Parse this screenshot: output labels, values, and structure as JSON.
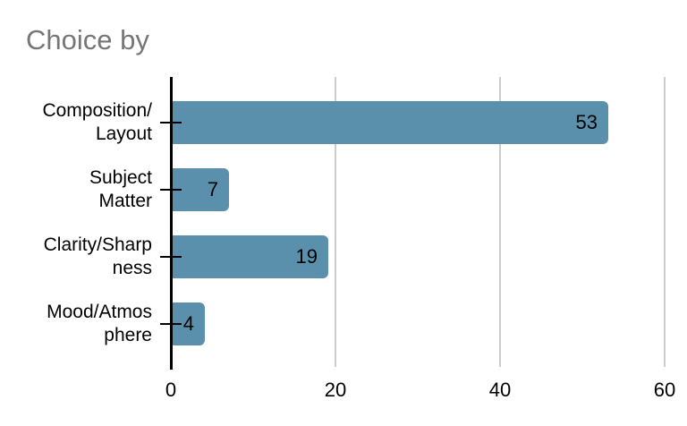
{
  "title": "Choice by",
  "colors": {
    "bar": "#5A90AC",
    "title_text": "#767676",
    "gridline": "#cccccc",
    "axis": "#000000",
    "label_text": "#000000"
  },
  "chart_data": {
    "type": "bar",
    "orientation": "horizontal",
    "title": "Choice by",
    "categories": [
      "Composition/Layout",
      "Subject Matter",
      "Clarity/Sharpness",
      "Mood/Atmosphere"
    ],
    "category_lines": [
      [
        "Composition/",
        "Layout"
      ],
      [
        "Subject",
        "Matter"
      ],
      [
        "Clarity/Sharp",
        "ness"
      ],
      [
        "Mood/Atmos",
        "phere"
      ]
    ],
    "values": [
      53,
      7,
      19,
      4
    ],
    "value_labels": [
      "53",
      "7",
      "19",
      "4"
    ],
    "xlabel": "",
    "ylabel": "",
    "xlim": [
      0,
      60
    ],
    "xticks": [
      0,
      20,
      40,
      60
    ],
    "xtick_labels": [
      "0",
      "20",
      "40",
      "60"
    ],
    "grid": true,
    "legend": "none"
  }
}
